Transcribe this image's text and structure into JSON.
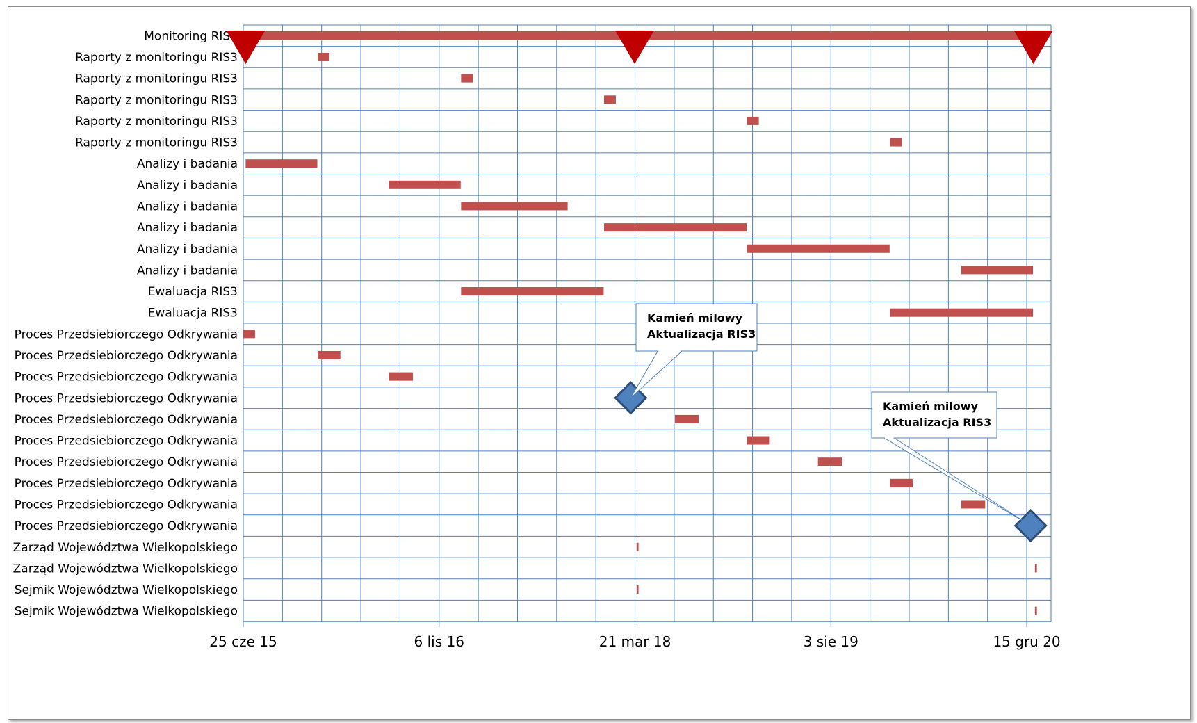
{
  "chart_data": {
    "type": "gantt",
    "x_axis": {
      "tick_labels": [
        "25 cze 15",
        "6 lis 16",
        "21 mar 18",
        "3 sie 19",
        "15 gru 20"
      ],
      "tick_dates": [
        "2015-06-25",
        "2016-11-06",
        "2018-03-21",
        "2019-08-03",
        "2020-12-15"
      ],
      "minor_gridlines_every_days": 100,
      "range": [
        "2015-06-25",
        "2021-02-15"
      ]
    },
    "grid": true,
    "bar_color": "#c0504d",
    "milestone_triangle_color": "#c00000",
    "milestone_diamond_color": "#4f81bd",
    "tasks": [
      {
        "label": "Monitoring RIS3",
        "start": "2015-06-25",
        "end": "2021-01-31",
        "style": "thick"
      },
      {
        "label": "Raporty z monitoringu RIS3",
        "start": "2016-01-01",
        "end": "2016-01-31"
      },
      {
        "label": "Raporty z monitoringu RIS3",
        "start": "2017-01-01",
        "end": "2017-01-31"
      },
      {
        "label": "Raporty z monitoringu RIS3",
        "start": "2018-01-01",
        "end": "2018-01-31"
      },
      {
        "label": "Raporty z monitoringu RIS3",
        "start": "2019-01-01",
        "end": "2019-01-31"
      },
      {
        "label": "Raporty z monitoringu RIS3",
        "start": "2020-01-01",
        "end": "2020-01-31"
      },
      {
        "label": "Analizy i badania",
        "start": "2015-07-01",
        "end": "2015-12-31"
      },
      {
        "label": "Analizy i badania",
        "start": "2016-07-01",
        "end": "2016-12-31"
      },
      {
        "label": "Analizy i badania",
        "start": "2017-01-01",
        "end": "2017-09-30"
      },
      {
        "label": "Analizy i badania",
        "start": "2018-01-01",
        "end": "2018-12-31"
      },
      {
        "label": "Analizy i badania",
        "start": "2019-01-01",
        "end": "2019-12-31"
      },
      {
        "label": "Analizy i badania",
        "start": "2020-07-01",
        "end": "2020-12-31"
      },
      {
        "label": "Ewaluacja RIS3",
        "start": "2017-01-01",
        "end": "2017-12-31"
      },
      {
        "label": "Ewaluacja RIS3",
        "start": "2020-01-01",
        "end": "2020-12-31"
      },
      {
        "label": "Proces Przedsiebiorczego Odkrywania",
        "start": "2015-06-25",
        "end": "2015-07-25"
      },
      {
        "label": "Proces Przedsiebiorczego Odkrywania",
        "start": "2016-01-01",
        "end": "2016-02-28"
      },
      {
        "label": "Proces Przedsiebiorczego Odkrywania",
        "start": "2016-07-01",
        "end": "2016-08-31"
      },
      {
        "label": "Proces Przedsiebiorczego Odkrywania",
        "milestone": "2018-03-10"
      },
      {
        "label": "Proces Przedsiebiorczego Odkrywania",
        "start": "2018-07-01",
        "end": "2018-08-31"
      },
      {
        "label": "Proces Przedsiebiorczego Odkrywania",
        "start": "2019-01-01",
        "end": "2019-02-28"
      },
      {
        "label": "Proces Przedsiebiorczego Odkrywania",
        "start": "2019-07-01",
        "end": "2019-08-31"
      },
      {
        "label": "Proces Przedsiebiorczego Odkrywania",
        "start": "2020-01-01",
        "end": "2020-02-28"
      },
      {
        "label": "Proces Przedsiebiorczego Odkrywania",
        "start": "2020-07-01",
        "end": "2020-08-31"
      },
      {
        "label": "Proces Przedsiebiorczego Odkrywania",
        "milestone": "2020-12-25"
      },
      {
        "label": "Zarząd Województwa Wielkopolskiego",
        "start": "2018-03-25",
        "end": "2018-03-30"
      },
      {
        "label": "Zarząd Województwa Wielkopolskiego",
        "start": "2021-01-05",
        "end": "2021-01-10"
      },
      {
        "label": "Sejmik Województwa Wielkopolskiego",
        "start": "2018-03-25",
        "end": "2018-03-30"
      },
      {
        "label": "Sejmik Województwa Wielkopolskiego",
        "start": "2021-01-05",
        "end": "2021-01-10"
      }
    ],
    "triangle_markers": [
      "2015-07-01",
      "2018-03-20",
      "2021-01-01"
    ],
    "callouts": [
      {
        "lines": [
          "Kamień milowy",
          "Aktualizacja RIS3"
        ],
        "target_task": 17
      },
      {
        "lines": [
          "Kamień milowy",
          "Aktualizacja RIS3"
        ],
        "target_task": 23
      }
    ]
  }
}
